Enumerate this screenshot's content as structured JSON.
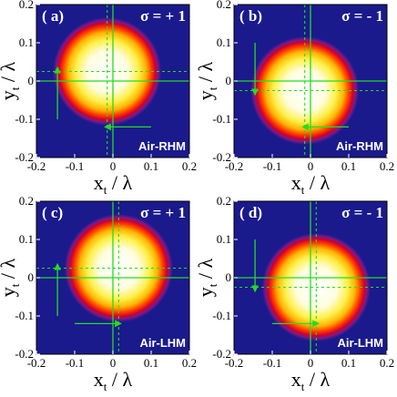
{
  "chart_data": [
    {
      "type": "heatmap",
      "panel_label": "( a)",
      "sigma": "σ = + 1",
      "medium": "Air-RHM",
      "xlabel": "x",
      "xlabel_sub": "t",
      "xlabel_suffix": " / λ",
      "ylabel": "y",
      "ylabel_sub": "t",
      "ylabel_suffix": " / λ",
      "xlim": [
        -0.2,
        0.2
      ],
      "ylim": [
        -0.2,
        0.2
      ],
      "xticks": [
        "-0.2",
        "-0.1",
        "0",
        "0.1",
        "0.2"
      ],
      "yticks": [
        "0.2",
        "0.1",
        "0",
        "-0.1",
        "-0.2"
      ],
      "beam_center": [
        0.0,
        0.0
      ],
      "beam_radius": 0.135,
      "shifted_center": [
        -0.015,
        0.025
      ],
      "arrow_vertical": {
        "x": -0.145,
        "y_from": -0.1,
        "y_to": 0.035
      },
      "arrow_horizontal": {
        "y": -0.12,
        "x_from": 0.1,
        "x_to": -0.02
      }
    },
    {
      "type": "heatmap",
      "panel_label": "( b)",
      "sigma": "σ = - 1",
      "medium": "Air-RHM",
      "xlabel": "x",
      "xlabel_sub": "t",
      "xlabel_suffix": " / λ",
      "ylabel": "y",
      "ylabel_sub": "t",
      "ylabel_suffix": " / λ",
      "xlim": [
        -0.2,
        0.2
      ],
      "ylim": [
        -0.2,
        0.2
      ],
      "xticks": [
        "-0.2",
        "-0.1",
        "0",
        "0.1",
        "0.2"
      ],
      "yticks": [
        "0.2",
        "0.1",
        "0",
        "-0.1",
        "-0.2"
      ],
      "beam_center": [
        0.0,
        0.0
      ],
      "beam_radius": 0.135,
      "shifted_center": [
        -0.015,
        -0.025
      ],
      "arrow_vertical": {
        "x": -0.145,
        "y_from": 0.1,
        "y_to": -0.035
      },
      "arrow_horizontal": {
        "y": -0.12,
        "x_from": 0.1,
        "x_to": -0.02
      }
    },
    {
      "type": "heatmap",
      "panel_label": "( c)",
      "sigma": "σ = + 1",
      "medium": "Air-LHM",
      "xlabel": "x",
      "xlabel_sub": "t",
      "xlabel_suffix": " / λ",
      "ylabel": "y",
      "ylabel_sub": "t",
      "ylabel_suffix": " / λ",
      "xlim": [
        -0.2,
        0.2
      ],
      "ylim": [
        -0.2,
        0.2
      ],
      "xticks": [
        "-0.2",
        "-0.1",
        "0",
        "0.1",
        "0.2"
      ],
      "yticks": [
        "0.2",
        "0.1",
        "0",
        "-0.1",
        "-0.2"
      ],
      "beam_center": [
        0.0,
        0.0
      ],
      "beam_radius": 0.135,
      "shifted_center": [
        0.015,
        0.025
      ],
      "arrow_vertical": {
        "x": -0.145,
        "y_from": -0.1,
        "y_to": 0.035
      },
      "arrow_horizontal": {
        "y": -0.12,
        "x_from": -0.1,
        "x_to": 0.02
      }
    },
    {
      "type": "heatmap",
      "panel_label": "( d)",
      "sigma": "σ = - 1",
      "medium": "Air-LHM",
      "xlabel": "x",
      "xlabel_sub": "t",
      "xlabel_suffix": " / λ",
      "ylabel": "y",
      "ylabel_sub": "t",
      "ylabel_suffix": " / λ",
      "xlim": [
        -0.2,
        0.2
      ],
      "ylim": [
        -0.2,
        0.2
      ],
      "xticks": [
        "-0.2",
        "-0.1",
        "0",
        "0.1",
        "0.2"
      ],
      "yticks": [
        "0.2",
        "0.1",
        "0",
        "-0.1",
        "-0.2"
      ],
      "beam_center": [
        0.0,
        0.0
      ],
      "beam_radius": 0.135,
      "shifted_center": [
        0.015,
        -0.025
      ],
      "arrow_vertical": {
        "x": -0.145,
        "y_from": 0.1,
        "y_to": -0.035
      },
      "arrow_horizontal": {
        "y": -0.12,
        "x_from": -0.1,
        "x_to": 0.02
      }
    }
  ],
  "colors": {
    "background": "#1a1a8c",
    "line": "#22dd22",
    "text": "#ffffff"
  }
}
